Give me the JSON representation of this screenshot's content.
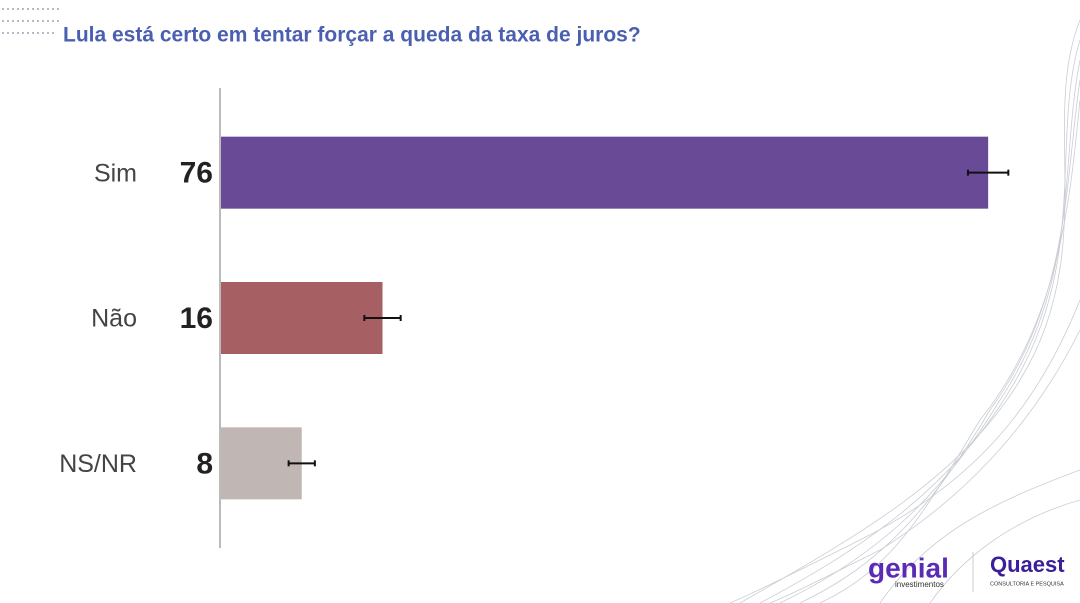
{
  "chart_data": {
    "type": "bar",
    "orientation": "horizontal",
    "title": "Lula está certo em tentar forçar a queda da taxa de juros?",
    "categories": [
      "Sim",
      "Não",
      "NS/NR"
    ],
    "values": [
      76,
      16,
      8
    ],
    "errors": [
      2,
      1.8,
      1.3
    ],
    "colors": [
      "#694a96",
      "#a65f62",
      "#c0b6b4"
    ],
    "xlim": [
      0,
      85
    ]
  },
  "logos": {
    "genial": "genial",
    "genial_sub": "investimentos",
    "quaest": "Quaest",
    "quaest_sub": "CONSULTORIA E PESQUISA"
  }
}
